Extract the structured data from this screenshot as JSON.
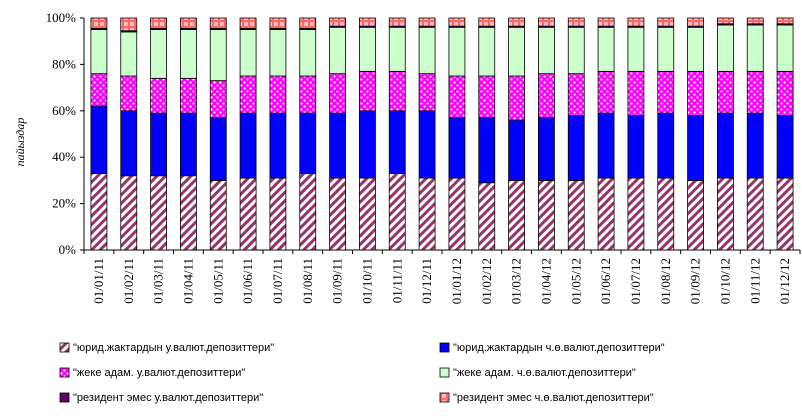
{
  "chart_data": {
    "type": "bar",
    "stacked": true,
    "percent": true,
    "ylabel": "пайыздар",
    "yticks": [
      "0%",
      "20%",
      "40%",
      "60%",
      "80%",
      "100%"
    ],
    "ylim": [
      0,
      100
    ],
    "categories": [
      "01/01/11",
      "01/02/11",
      "01/03/11",
      "01/04/11",
      "01/05/11",
      "01/06/11",
      "01/07/11",
      "01/08/11",
      "01/09/11",
      "01/10/11",
      "01/11/11",
      "01/12/11",
      "01/01/12",
      "01/02/12",
      "01/03/12",
      "01/04/12",
      "01/05/12",
      "01/06/12",
      "01/07/12",
      "01/08/12",
      "01/09/12",
      "01/10/12",
      "01/11/12",
      "01/12/12"
    ],
    "series": [
      {
        "name": "\"юрид.жактардын у.валют.депозиттери\"",
        "color": "#993366",
        "pattern": "diagonal",
        "values": [
          33,
          32,
          32,
          32,
          30,
          31,
          31,
          33,
          31,
          31,
          33,
          31,
          31,
          29,
          30,
          30,
          30,
          31,
          31,
          31,
          30,
          31,
          31,
          31
        ]
      },
      {
        "name": "\"юрид.жактардын ч.ө.валют.депозиттери\"",
        "color": "#0000ff",
        "pattern": "solid",
        "values": [
          29,
          28,
          27,
          27,
          27,
          28,
          28,
          26,
          28,
          29,
          27,
          29,
          26,
          28,
          26,
          27,
          28,
          28,
          27,
          28,
          28,
          28,
          28,
          27
        ]
      },
      {
        "name": "\"жеке адам. у.валют.депозиттери\"",
        "color": "#ff00ff",
        "pattern": "dots",
        "values": [
          14,
          15,
          15,
          15,
          16,
          16,
          16,
          16,
          17,
          17,
          17,
          16,
          18,
          18,
          19,
          19,
          18,
          18,
          19,
          18,
          19,
          18,
          18,
          19
        ]
      },
      {
        "name": "\"жеке адам. ч.ө.валют.депозиттери\"",
        "color": "#ccffcc",
        "pattern": "solid",
        "values": [
          19,
          19,
          21,
          21,
          22,
          20,
          20,
          20,
          20,
          19,
          19,
          20,
          21,
          21,
          21,
          20,
          20,
          19,
          19,
          19,
          19,
          20,
          20,
          20
        ]
      },
      {
        "name": "\"резидент эмес у.валют.депозиттери\"",
        "color": "#660066",
        "pattern": "solid",
        "values": [
          0.5,
          0.5,
          0.5,
          0.5,
          0.5,
          0.5,
          0.5,
          0.5,
          0.5,
          0.5,
          0.5,
          0.5,
          0.5,
          0.5,
          0.5,
          0.5,
          0.5,
          0.5,
          0.5,
          0.5,
          0.5,
          0.5,
          0.5,
          0.5
        ]
      },
      {
        "name": "\"резидент эмес ч.ө.валют.депозиттери\"",
        "color": "#ff9999",
        "pattern": "plaid",
        "values": [
          4.5,
          5.5,
          4.5,
          4.5,
          4.5,
          4.5,
          4.5,
          4.5,
          3.5,
          3.5,
          3.5,
          3.5,
          3.5,
          3.5,
          3.5,
          3.5,
          3.5,
          3.5,
          3.5,
          3.5,
          3.5,
          2.5,
          2.5,
          2.5
        ]
      }
    ],
    "legend_position": "bottom",
    "grid": false
  }
}
